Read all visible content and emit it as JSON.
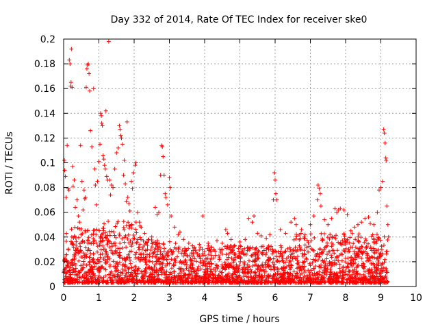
{
  "chart_data": {
    "type": "scatter",
    "title": "Day 332 of 2014, Rate Of TEC Index for receiver ske0",
    "xlabel": "GPS time / hours",
    "ylabel": "ROTI / TECUs",
    "xlim": [
      0,
      10
    ],
    "ylim": [
      0,
      0.2
    ],
    "xticks": [
      0,
      1,
      2,
      3,
      4,
      5,
      6,
      7,
      8,
      9,
      10
    ],
    "yticks": [
      0,
      0.02,
      0.04,
      0.06,
      0.08,
      0.1,
      0.12,
      0.14,
      0.16,
      0.18,
      0.2
    ],
    "xtick_labels": [
      "0",
      "1",
      "2",
      "3",
      "4",
      "5",
      "6",
      "7",
      "8",
      "9",
      "10"
    ],
    "ytick_labels": [
      "0",
      "0.02",
      "0.04",
      "0.06",
      "0.08",
      "0.1",
      "0.12",
      "0.14",
      "0.16",
      "0.18",
      "0.2"
    ],
    "grid": true,
    "marker": "+",
    "color": "#ff0000",
    "series": [
      {
        "name": "ske0",
        "points": [
          [
            0.02,
            0.102
          ],
          [
            0.03,
            0.094
          ],
          [
            0.05,
            0.089
          ],
          [
            0.07,
            0.072
          ],
          [
            0.1,
            0.114
          ],
          [
            0.13,
            0.079
          ],
          [
            0.15,
            0.078
          ],
          [
            0.16,
            0.183
          ],
          [
            0.18,
            0.18
          ],
          [
            0.2,
            0.162
          ],
          [
            0.21,
            0.165
          ],
          [
            0.22,
            0.192
          ],
          [
            0.24,
            0.161
          ],
          [
            0.25,
            0.097
          ],
          [
            0.27,
            0.081
          ],
          [
            0.3,
            0.086
          ],
          [
            0.33,
            0.064
          ],
          [
            0.38,
            0.07
          ],
          [
            0.42,
            0.057
          ],
          [
            0.45,
            0.052
          ],
          [
            0.48,
            0.114
          ],
          [
            0.52,
            0.085
          ],
          [
            0.55,
            0.062
          ],
          [
            0.58,
            0.078
          ],
          [
            0.6,
            0.071
          ],
          [
            0.62,
            0.072
          ],
          [
            0.64,
            0.161
          ],
          [
            0.66,
            0.176
          ],
          [
            0.68,
            0.179
          ],
          [
            0.7,
            0.18
          ],
          [
            0.72,
            0.172
          ],
          [
            0.74,
            0.158
          ],
          [
            0.76,
            0.126
          ],
          [
            0.8,
            0.113
          ],
          [
            0.85,
            0.16
          ],
          [
            0.88,
            0.095
          ],
          [
            0.9,
            0.082
          ],
          [
            0.93,
            0.066
          ],
          [
            0.96,
            0.085
          ],
          [
            1.0,
            0.101
          ],
          [
            1.03,
            0.115
          ],
          [
            1.05,
            0.14
          ],
          [
            1.07,
            0.138
          ],
          [
            1.08,
            0.132
          ],
          [
            1.1,
            0.13
          ],
          [
            1.12,
            0.106
          ],
          [
            1.14,
            0.103
          ],
          [
            1.16,
            0.098
          ],
          [
            1.18,
            0.095
          ],
          [
            1.2,
            0.142
          ],
          [
            1.22,
            0.089
          ],
          [
            1.25,
            0.086
          ],
          [
            1.28,
            0.198
          ],
          [
            1.3,
            0.086
          ],
          [
            1.33,
            0.074
          ],
          [
            1.36,
            0.082
          ],
          [
            1.4,
            0.08
          ],
          [
            1.45,
            0.095
          ],
          [
            1.5,
            0.108
          ],
          [
            1.55,
            0.112
          ],
          [
            1.58,
            0.13
          ],
          [
            1.6,
            0.127
          ],
          [
            1.62,
            0.122
          ],
          [
            1.64,
            0.12
          ],
          [
            1.67,
            0.115
          ],
          [
            1.7,
            0.09
          ],
          [
            1.72,
            0.102
          ],
          [
            1.75,
            0.083
          ],
          [
            1.78,
            0.069
          ],
          [
            1.8,
            0.133
          ],
          [
            1.82,
            0.072
          ],
          [
            1.85,
            0.067
          ],
          [
            1.88,
            0.061
          ],
          [
            1.92,
            0.085
          ],
          [
            1.95,
            0.079
          ],
          [
            1.98,
            0.092
          ],
          [
            2.03,
            0.098
          ],
          [
            2.05,
            0.1
          ],
          [
            2.1,
            0.06
          ],
          [
            2.15,
            0.052
          ],
          [
            2.2,
            0.048
          ],
          [
            2.3,
            0.043
          ],
          [
            2.4,
            0.038
          ],
          [
            2.5,
            0.04
          ],
          [
            2.6,
            0.064
          ],
          [
            2.65,
            0.058
          ],
          [
            2.7,
            0.06
          ],
          [
            2.75,
            0.09
          ],
          [
            2.78,
            0.114
          ],
          [
            2.8,
            0.113
          ],
          [
            2.82,
            0.105
          ],
          [
            2.85,
            0.09
          ],
          [
            2.88,
            0.075
          ],
          [
            2.9,
            0.072
          ],
          [
            2.95,
            0.066
          ],
          [
            3.0,
            0.088
          ],
          [
            3.02,
            0.08
          ],
          [
            3.05,
            0.057
          ],
          [
            3.15,
            0.048
          ],
          [
            3.25,
            0.042
          ],
          [
            3.3,
            0.044
          ],
          [
            3.4,
            0.038
          ],
          [
            3.55,
            0.035
          ],
          [
            3.7,
            0.031
          ],
          [
            3.85,
            0.034
          ],
          [
            3.95,
            0.057
          ],
          [
            4.1,
            0.035
          ],
          [
            4.2,
            0.032
          ],
          [
            4.35,
            0.037
          ],
          [
            4.5,
            0.035
          ],
          [
            4.6,
            0.046
          ],
          [
            4.65,
            0.043
          ],
          [
            4.75,
            0.038
          ],
          [
            4.85,
            0.033
          ],
          [
            5.0,
            0.036
          ],
          [
            5.15,
            0.038
          ],
          [
            5.25,
            0.055
          ],
          [
            5.35,
            0.052
          ],
          [
            5.4,
            0.057
          ],
          [
            5.5,
            0.043
          ],
          [
            5.6,
            0.041
          ],
          [
            5.75,
            0.039
          ],
          [
            5.85,
            0.042
          ],
          [
            5.95,
            0.07
          ],
          [
            5.98,
            0.092
          ],
          [
            6.0,
            0.086
          ],
          [
            6.02,
            0.075
          ],
          [
            6.05,
            0.07
          ],
          [
            6.15,
            0.046
          ],
          [
            6.3,
            0.043
          ],
          [
            6.45,
            0.052
          ],
          [
            6.55,
            0.055
          ],
          [
            6.6,
            0.05
          ],
          [
            6.75,
            0.046
          ],
          [
            6.85,
            0.042
          ],
          [
            7.0,
            0.05
          ],
          [
            7.1,
            0.057
          ],
          [
            7.2,
            0.07
          ],
          [
            7.22,
            0.082
          ],
          [
            7.25,
            0.079
          ],
          [
            7.28,
            0.075
          ],
          [
            7.3,
            0.065
          ],
          [
            7.4,
            0.054
          ],
          [
            7.5,
            0.05
          ],
          [
            7.6,
            0.055
          ],
          [
            7.7,
            0.063
          ],
          [
            7.75,
            0.06
          ],
          [
            7.8,
            0.062
          ],
          [
            7.85,
            0.063
          ],
          [
            7.95,
            0.062
          ],
          [
            8.05,
            0.058
          ],
          [
            8.15,
            0.045
          ],
          [
            8.25,
            0.048
          ],
          [
            8.35,
            0.05
          ],
          [
            8.45,
            0.052
          ],
          [
            8.55,
            0.055
          ],
          [
            8.65,
            0.056
          ],
          [
            8.7,
            0.051
          ],
          [
            8.8,
            0.05
          ],
          [
            8.9,
            0.06
          ],
          [
            8.95,
            0.078
          ],
          [
            9.0,
            0.08
          ],
          [
            9.05,
            0.085
          ],
          [
            9.08,
            0.127
          ],
          [
            9.1,
            0.124
          ],
          [
            9.12,
            0.116
          ],
          [
            9.14,
            0.104
          ],
          [
            9.15,
            0.102
          ],
          [
            9.17,
            0.065
          ],
          [
            9.2,
            0.05
          ],
          [
            9.22,
            0.04
          ]
        ]
      }
    ]
  }
}
